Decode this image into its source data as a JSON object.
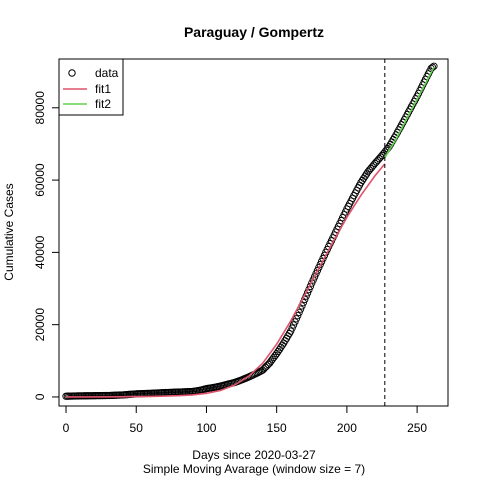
{
  "chart_data": {
    "type": "scatter",
    "title": "Paraguay / Gompertz",
    "xlabel": "Days since 2020-03-27",
    "xlabel2": "Simple Moving Avarage (window size = 7)",
    "ylabel": "Cumulative Cases",
    "xlim": [
      -5,
      272
    ],
    "ylim": [
      -2500,
      93500
    ],
    "xticks": [
      0,
      50,
      100,
      150,
      200,
      250
    ],
    "yticks": [
      0,
      20000,
      40000,
      60000,
      80000
    ],
    "vline_x": 227,
    "grid": false,
    "legend_position": "top-left",
    "legend": [
      {
        "label": "data",
        "kind": "point",
        "color": "#000000"
      },
      {
        "label": "fit1",
        "kind": "line",
        "color": "#DF536B"
      },
      {
        "label": "fit2",
        "kind": "line",
        "color": "#61D04F"
      }
    ],
    "series": [
      {
        "name": "data",
        "kind": "points",
        "color": "#000000",
        "x": [
          0,
          10,
          20,
          30,
          40,
          50,
          60,
          70,
          80,
          90,
          95,
          100,
          105,
          110,
          115,
          120,
          125,
          130,
          135,
          140,
          145,
          150,
          155,
          160,
          165,
          170,
          175,
          180,
          185,
          190,
          195,
          200,
          205,
          210,
          215,
          220,
          225,
          230,
          235,
          240,
          245,
          250,
          255,
          260,
          262
        ],
        "y": [
          200,
          300,
          350,
          400,
          550,
          850,
          1000,
          1200,
          1350,
          1500,
          1800,
          2300,
          2600,
          3000,
          3500,
          4000,
          4700,
          5500,
          6400,
          7400,
          9400,
          12000,
          14900,
          18200,
          22500,
          27000,
          31500,
          35800,
          40000,
          44000,
          48000,
          52000,
          55700,
          59300,
          62300,
          64600,
          66800,
          69200,
          72500,
          76000,
          79600,
          83200,
          87100,
          90900,
          91500
        ]
      },
      {
        "name": "fit1",
        "kind": "line",
        "color": "#DF536B",
        "x": [
          0,
          20,
          40,
          60,
          80,
          90,
          100,
          110,
          120,
          130,
          140,
          150,
          160,
          170,
          180,
          190,
          200,
          210,
          220,
          227
        ],
        "y": [
          0,
          5,
          50,
          150,
          350,
          550,
          1000,
          1800,
          3300,
          5700,
          9300,
          14600,
          21000,
          28200,
          35600,
          42800,
          49700,
          55800,
          61200,
          64500
        ]
      },
      {
        "name": "fit2",
        "kind": "line",
        "color": "#61D04F",
        "x": [
          227,
          235,
          245,
          255,
          262
        ],
        "y": [
          66200,
          71300,
          78700,
          86000,
          91200
        ]
      }
    ]
  }
}
